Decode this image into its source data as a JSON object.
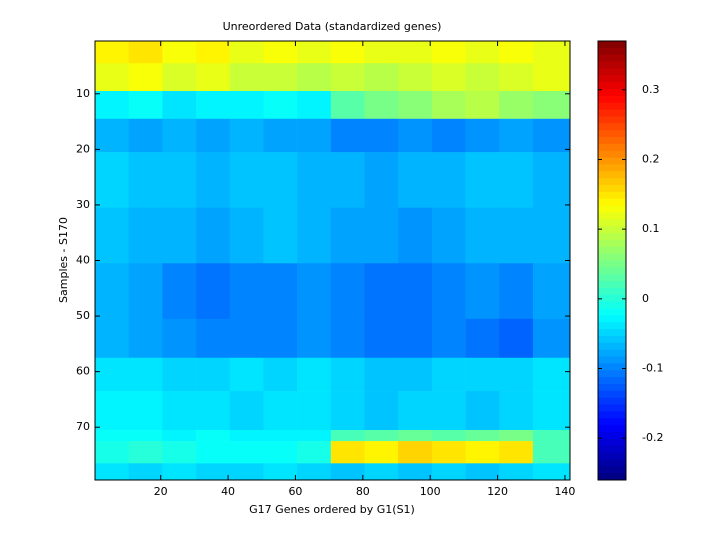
{
  "chart_data": {
    "type": "heatmap",
    "title": "Unreordered Data (standardized genes)",
    "xlabel": "G17 Genes ordered by G1(S1)",
    "ylabel": "Samples - S170",
    "xbins": [
      0.5,
      10.5,
      20.5,
      30.5,
      40.5,
      50.5,
      60.5,
      70.5,
      80.5,
      90.5,
      100.5,
      110.5,
      120.5,
      130.5,
      141.5
    ],
    "ybins": [
      0.5,
      4.5,
      9.5,
      14.5,
      20.5,
      30.5,
      40.5,
      50.5,
      57.5,
      63.5,
      70.5,
      72.5,
      76.5,
      79.5
    ],
    "z": [
      [
        0.14,
        0.15,
        0.13,
        0.14,
        0.12,
        0.13,
        0.12,
        0.13,
        0.12,
        0.12,
        0.13,
        0.12,
        0.13,
        0.12
      ],
      [
        0.12,
        0.13,
        0.11,
        0.12,
        0.1,
        0.1,
        0.09,
        0.1,
        0.09,
        0.1,
        0.11,
        0.1,
        0.11,
        0.12
      ],
      [
        -0.03,
        -0.02,
        -0.04,
        -0.03,
        -0.03,
        -0.02,
        -0.03,
        0.03,
        0.05,
        0.06,
        0.08,
        0.09,
        0.07,
        0.06
      ],
      [
        -0.07,
        -0.08,
        -0.07,
        -0.08,
        -0.07,
        -0.08,
        -0.08,
        -0.1,
        -0.1,
        -0.09,
        -0.1,
        -0.09,
        -0.08,
        -0.09
      ],
      [
        -0.05,
        -0.06,
        -0.06,
        -0.07,
        -0.06,
        -0.06,
        -0.07,
        -0.07,
        -0.08,
        -0.07,
        -0.07,
        -0.06,
        -0.06,
        -0.07
      ],
      [
        -0.06,
        -0.07,
        -0.07,
        -0.08,
        -0.07,
        -0.06,
        -0.07,
        -0.08,
        -0.08,
        -0.09,
        -0.08,
        -0.07,
        -0.07,
        -0.07
      ],
      [
        -0.07,
        -0.08,
        -0.1,
        -0.11,
        -0.1,
        -0.1,
        -0.09,
        -0.1,
        -0.11,
        -0.11,
        -0.1,
        -0.09,
        -0.1,
        -0.08
      ],
      [
        -0.07,
        -0.08,
        -0.09,
        -0.1,
        -0.1,
        -0.1,
        -0.09,
        -0.1,
        -0.11,
        -0.11,
        -0.1,
        -0.11,
        -0.12,
        -0.09
      ],
      [
        -0.04,
        -0.04,
        -0.05,
        -0.05,
        -0.04,
        -0.05,
        -0.04,
        -0.05,
        -0.06,
        -0.06,
        -0.05,
        -0.05,
        -0.05,
        -0.04
      ],
      [
        -0.03,
        -0.03,
        -0.04,
        -0.04,
        -0.05,
        -0.04,
        -0.04,
        -0.05,
        -0.06,
        -0.05,
        -0.05,
        -0.06,
        -0.05,
        -0.04
      ],
      [
        -0.02,
        -0.02,
        -0.03,
        -0.02,
        -0.03,
        -0.03,
        -0.03,
        0.02,
        0.03,
        0.04,
        0.03,
        0.04,
        0.05,
        0.02
      ],
      [
        -0.01,
        0,
        -0.01,
        -0.02,
        -0.02,
        -0.02,
        -0.01,
        0.15,
        0.14,
        0.16,
        0.15,
        0.14,
        0.15,
        0.02
      ],
      [
        -0.04,
        -0.05,
        -0.04,
        -0.05,
        -0.05,
        -0.04,
        -0.05,
        -0.06,
        -0.05,
        -0.06,
        -0.05,
        -0.06,
        -0.05,
        -0.04
      ]
    ],
    "xlim": [
      0.5,
      141.5
    ],
    "xticks": [
      20,
      40,
      60,
      80,
      100,
      120,
      140
    ],
    "ylim": [
      0.5,
      79.5
    ],
    "yticks": [
      10,
      20,
      30,
      40,
      50,
      60,
      70
    ],
    "zlim": [
      -0.26,
      0.37
    ],
    "zticks": [
      -0.2,
      -0.1,
      0,
      0.1,
      0.2,
      0.3
    ],
    "colormap": "jet"
  }
}
